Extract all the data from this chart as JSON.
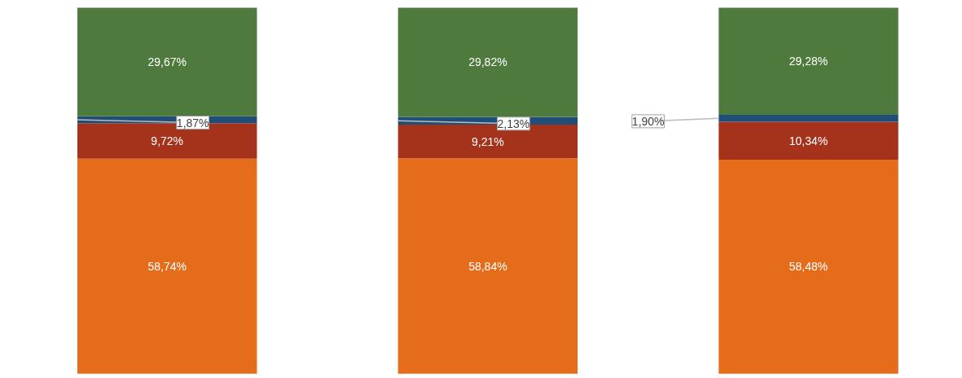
{
  "chart_data": {
    "type": "bar",
    "stacked": true,
    "categories": [
      null,
      null,
      null
    ],
    "ylim": [
      0,
      102
    ],
    "grid": false,
    "tick_labels": false,
    "series": [
      {
        "color": "#e46c1a",
        "values": [
          58.74,
          58.84,
          58.48
        ],
        "value_labels": [
          "58,74%",
          "58,84%",
          "58,48%"
        ]
      },
      {
        "color": "#a5321a",
        "values": [
          9.72,
          9.21,
          10.34
        ],
        "value_labels": [
          "9,72%",
          "9,21%",
          "10,34%"
        ]
      },
      {
        "color": "#1f4e79",
        "values": [
          1.87,
          2.13,
          1.9
        ],
        "value_labels": [
          "1,87%",
          "2,13%",
          "1,90%"
        ]
      },
      {
        "color": "#4e7a3e",
        "values": [
          29.67,
          29.82,
          29.28
        ],
        "value_labels": [
          "29,67%",
          "29,82%",
          "29,28%"
        ]
      }
    ]
  }
}
